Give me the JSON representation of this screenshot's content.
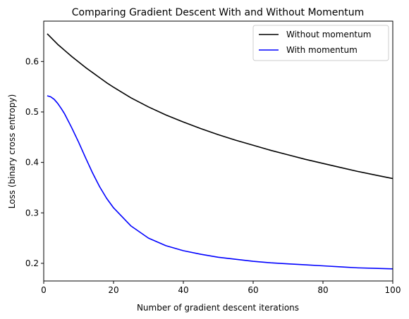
{
  "chart_data": {
    "type": "line",
    "title": "Comparing Gradient Descent With and Without Momentum",
    "xlabel": "Number of gradient descent iterations",
    "ylabel": "Loss (binary cross entropy)",
    "xlim": [
      0,
      100
    ],
    "ylim": [
      0.165,
      0.68
    ],
    "xticks": [
      "0",
      "20",
      "40",
      "60",
      "80",
      "100"
    ],
    "yticks": [
      "0.2",
      "0.3",
      "0.4",
      "0.5",
      "0.6"
    ],
    "grid": false,
    "legend_position": "top-right",
    "x": [
      1,
      2,
      3,
      4,
      5,
      6,
      8,
      10,
      12,
      14,
      16,
      18,
      20,
      25,
      30,
      35,
      40,
      45,
      50,
      55,
      60,
      65,
      70,
      75,
      80,
      85,
      90,
      95,
      100
    ],
    "series": [
      {
        "name": "Without momentum",
        "color": "#000000",
        "values": [
          0.655,
          0.648,
          0.641,
          0.634,
          0.628,
          0.622,
          0.61,
          0.599,
          0.588,
          0.578,
          0.568,
          0.558,
          0.549,
          0.528,
          0.51,
          0.494,
          0.48,
          0.467,
          0.455,
          0.444,
          0.434,
          0.424,
          0.415,
          0.406,
          0.398,
          0.39,
          0.382,
          0.375,
          0.368
        ]
      },
      {
        "name": "With momentum",
        "color": "#0000ff",
        "values": [
          0.532,
          0.53,
          0.525,
          0.517,
          0.507,
          0.496,
          0.469,
          0.44,
          0.409,
          0.379,
          0.352,
          0.329,
          0.31,
          0.274,
          0.25,
          0.235,
          0.225,
          0.218,
          0.212,
          0.208,
          0.204,
          0.201,
          0.199,
          0.197,
          0.195,
          0.193,
          0.191,
          0.19,
          0.189
        ]
      }
    ]
  }
}
